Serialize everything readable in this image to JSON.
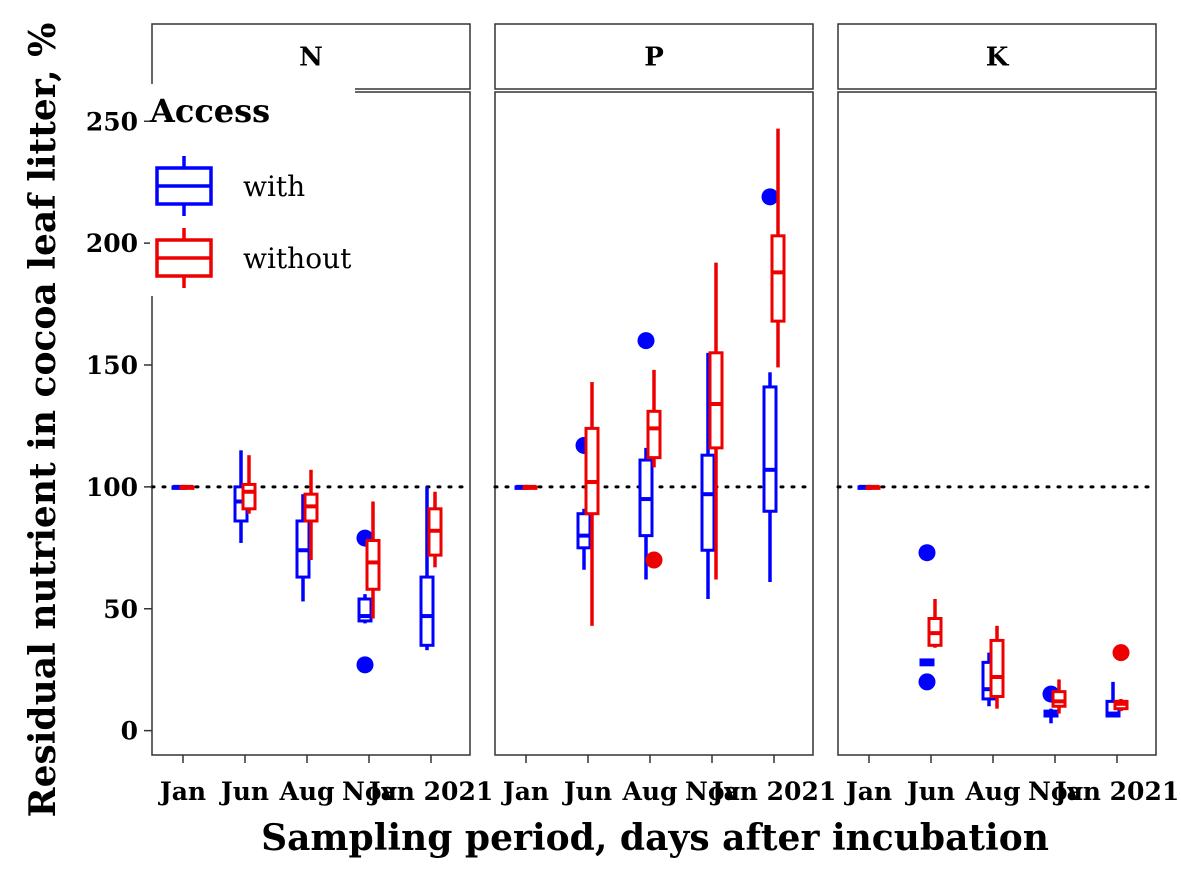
{
  "chart_data": {
    "type": "box",
    "xlabel": "Sampling period, days after incubation",
    "ylabel": "Residual nutrient in cocoa leaf litter, %",
    "categories": [
      "Jan",
      "Jun",
      "Aug",
      "Nov",
      "Jan 2021"
    ],
    "ylim": [
      -10,
      262
    ],
    "yticks": [
      0,
      50,
      100,
      150,
      200,
      250
    ],
    "reference_line": 100,
    "grid": false,
    "legend": {
      "title": "Access",
      "position": "top-left",
      "entries": [
        {
          "label": "with",
          "color": "#0000ff"
        },
        {
          "label": "without",
          "color": "#ee0000"
        }
      ]
    },
    "panels": [
      {
        "name": "N",
        "boxes": {
          "with": [
            {
              "min": 100,
              "q1": 100,
              "median": 100,
              "q3": 100,
              "max": 100,
              "outliers": []
            },
            {
              "min": 77,
              "q1": 86,
              "median": 94,
              "q3": 100,
              "max": 115,
              "outliers": []
            },
            {
              "min": 53,
              "q1": 63,
              "median": 74,
              "q3": 86,
              "max": 97,
              "outliers": []
            },
            {
              "min": 44,
              "q1": 45,
              "median": 47,
              "q3": 54,
              "max": 56,
              "outliers": [
                79,
                27
              ]
            },
            {
              "min": 33,
              "q1": 35,
              "median": 47,
              "q3": 63,
              "max": 100,
              "outliers": []
            }
          ],
          "without": [
            {
              "min": 100,
              "q1": 100,
              "median": 100,
              "q3": 100,
              "max": 100,
              "outliers": []
            },
            {
              "min": 89,
              "q1": 91,
              "median": 98,
              "q3": 101,
              "max": 113,
              "outliers": []
            },
            {
              "min": 70,
              "q1": 86,
              "median": 92,
              "q3": 97,
              "max": 107,
              "outliers": []
            },
            {
              "min": 46,
              "q1": 58,
              "median": 69,
              "q3": 78,
              "max": 94,
              "outliers": []
            },
            {
              "min": 67,
              "q1": 72,
              "median": 82,
              "q3": 91,
              "max": 98,
              "outliers": []
            }
          ]
        }
      },
      {
        "name": "P",
        "boxes": {
          "with": [
            {
              "min": 100,
              "q1": 100,
              "median": 100,
              "q3": 100,
              "max": 100,
              "outliers": []
            },
            {
              "min": 66,
              "q1": 75,
              "median": 80,
              "q3": 89,
              "max": 91,
              "outliers": [
                117
              ]
            },
            {
              "min": 62,
              "q1": 80,
              "median": 95,
              "q3": 111,
              "max": 116,
              "outliers": [
                160
              ]
            },
            {
              "min": 54,
              "q1": 74,
              "median": 97,
              "q3": 113,
              "max": 155,
              "outliers": []
            },
            {
              "min": 61,
              "q1": 90,
              "median": 107,
              "q3": 141,
              "max": 147,
              "outliers": [
                219
              ]
            }
          ],
          "without": [
            {
              "min": 100,
              "q1": 100,
              "median": 100,
              "q3": 100,
              "max": 100,
              "outliers": []
            },
            {
              "min": 43,
              "q1": 89,
              "median": 102,
              "q3": 124,
              "max": 143,
              "outliers": []
            },
            {
              "min": 108,
              "q1": 112,
              "median": 124,
              "q3": 131,
              "max": 148,
              "outliers": [
                70
              ]
            },
            {
              "min": 62,
              "q1": 116,
              "median": 134,
              "q3": 155,
              "max": 192,
              "outliers": []
            },
            {
              "min": 149,
              "q1": 168,
              "median": 188,
              "q3": 203,
              "max": 247,
              "outliers": []
            }
          ]
        }
      },
      {
        "name": "K",
        "boxes": {
          "with": [
            {
              "min": 100,
              "q1": 100,
              "median": 100,
              "q3": 100,
              "max": 100,
              "outliers": []
            },
            {
              "min": 27,
              "q1": 27,
              "median": 28,
              "q3": 29,
              "max": 29,
              "outliers": [
                73,
                20
              ]
            },
            {
              "min": 10,
              "q1": 13,
              "median": 17,
              "q3": 28,
              "max": 32,
              "outliers": []
            },
            {
              "min": 3,
              "q1": 6,
              "median": 7,
              "q3": 8,
              "max": 9,
              "outliers": [
                15
              ]
            },
            {
              "min": 6,
              "q1": 6,
              "median": 7,
              "q3": 12,
              "max": 20,
              "outliers": []
            }
          ],
          "without": [
            {
              "min": 100,
              "q1": 100,
              "median": 100,
              "q3": 100,
              "max": 100,
              "outliers": []
            },
            {
              "min": 34,
              "q1": 35,
              "median": 40,
              "q3": 46,
              "max": 54,
              "outliers": []
            },
            {
              "min": 9,
              "q1": 14,
              "median": 22,
              "q3": 37,
              "max": 43,
              "outliers": []
            },
            {
              "min": 7,
              "q1": 10,
              "median": 12,
              "q3": 16,
              "max": 21,
              "outliers": []
            },
            {
              "min": 8,
              "q1": 9,
              "median": 11,
              "q3": 12,
              "max": 13,
              "outliers": [
                32
              ]
            }
          ]
        }
      }
    ]
  }
}
